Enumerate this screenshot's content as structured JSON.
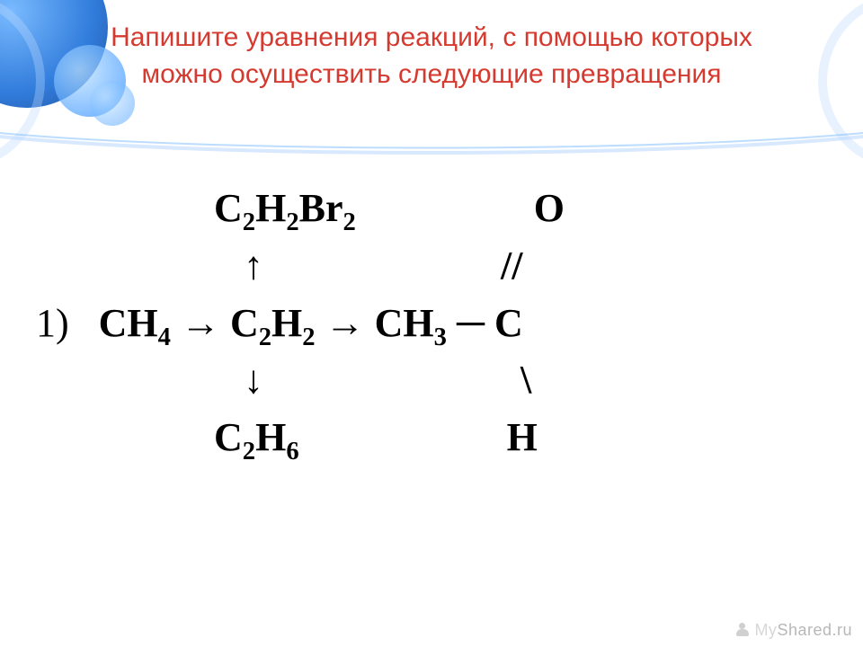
{
  "title": "Напишите уравнения реакций, с помощью которых можно осуществить следующие превращения",
  "title_color": "#d43a2f",
  "title_fontsize": 30,
  "background_color": "#ffffff",
  "accent_blue": "#4da0ff",
  "content_color": "#000000",
  "content_font": "Times New Roman",
  "content_fontsize": 44,
  "reaction": {
    "rows": [
      {
        "indent": "                  ",
        "formula_html": "С<sub>2</sub>H<sub>2</sub>Br<sub>2</sub>                  O"
      },
      {
        "indent": "                     ",
        "formula_html": "↑                        //"
      },
      {
        "indent": "",
        "prefix": "1)   ",
        "formula_html": "CH<sub>4</sub> → C<sub>2</sub>H<sub>2</sub> → CH<sub>3</sub> ─ C"
      },
      {
        "indent": "                     ",
        "formula_html": "↓                          \\"
      },
      {
        "indent": "                  ",
        "formula_html": "C<sub>2</sub>H<sub>6</sub>                     H"
      }
    ]
  },
  "watermark": {
    "part1": "My",
    "part2": "Shared",
    "suffix": ".ru"
  },
  "underline_curve_color": "#bcd9ff"
}
